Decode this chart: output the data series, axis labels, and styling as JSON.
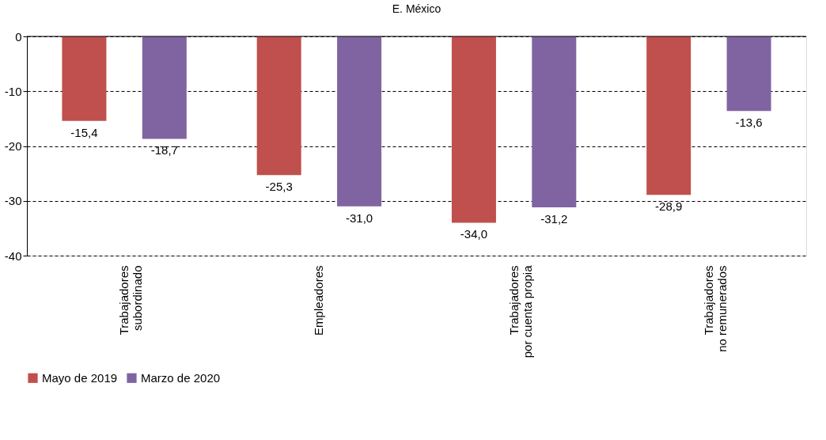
{
  "chart_data": {
    "type": "bar",
    "title": "E. México",
    "categories": [
      "Trabajadores\nsubordinado",
      "Empleadores",
      "Trabajadores\npor cuenta propia",
      "Trabajadores\nno remunerados"
    ],
    "series": [
      {
        "name": "Mayo de 2019",
        "color": "#c0504d",
        "values": [
          -15.4,
          -25.3,
          -34.0,
          -28.9
        ],
        "value_labels": [
          "-15,4",
          "-25,3",
          "-34,0",
          "-28,9"
        ]
      },
      {
        "name": "Marzo de 2020",
        "color": "#8064a2",
        "values": [
          -18.7,
          -31.0,
          -31.2,
          -13.6
        ],
        "value_labels": [
          "-18,7",
          "-31,0",
          "-31,2",
          "-13,6"
        ]
      }
    ],
    "ylim": [
      -40,
      0
    ],
    "yticks": [
      0,
      -10,
      -20,
      -30,
      -40
    ],
    "grid": "y",
    "legend": "bottom"
  }
}
